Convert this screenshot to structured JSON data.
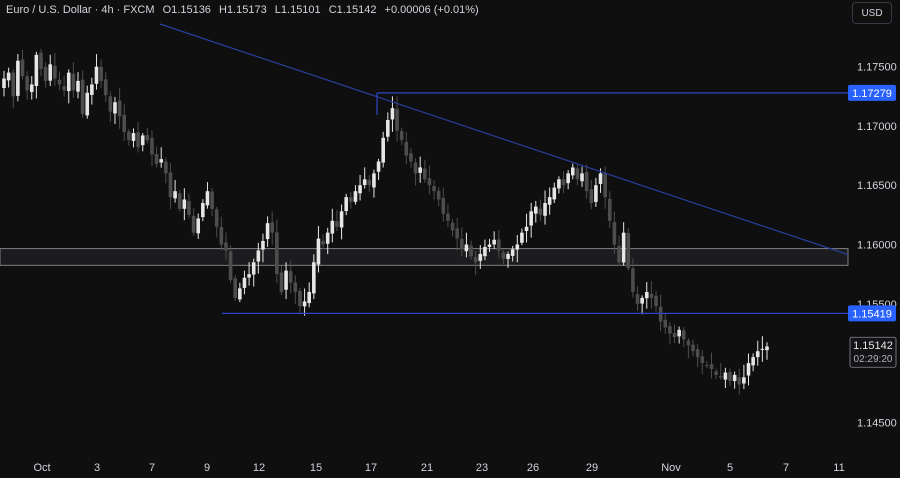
{
  "header": {
    "symbol": "Euro / U.S. Dollar · 4h · FXCM",
    "open": "O1.15136",
    "high": "H1.15173",
    "low": "L1.15101",
    "close": "C1.15142",
    "change": "+0.00006 (+0.01%)"
  },
  "currency_button": "USD",
  "colors": {
    "background": "#0f0f0f",
    "candle_up": "#e6e6e6",
    "candle_down": "#4d4d4d",
    "trendline": "#2a3f9e",
    "level_line": "#2c45c4",
    "label_bg": "#2962ff",
    "zone_fill": "#1c1c1f",
    "zone_border": "#9a9aa0",
    "axis_text": "#d1d4dc"
  },
  "chart_data": {
    "type": "candlestick",
    "ylim": [
      1.1425,
      1.1786
    ],
    "y_ticks": [
      "1.17500",
      "1.17000",
      "1.16500",
      "1.16000",
      "1.15500",
      "1.14500"
    ],
    "x_ticks": [
      "Oct",
      "3",
      "7",
      "9",
      "12",
      "15",
      "17",
      "21",
      "23",
      "26",
      "29",
      "Nov",
      "5",
      "7",
      "11"
    ],
    "grid": false,
    "levels": [
      {
        "label": "1.17279",
        "value": 1.17279
      },
      {
        "label": "1.15419",
        "value": 1.15419
      }
    ],
    "current_price": {
      "label": "1.15142",
      "value": 1.15142,
      "countdown": "02:29:20"
    },
    "zone": {
      "from": 1.15825,
      "to": 1.15965
    },
    "trendline": {
      "from": 1.1786,
      "to": 1.15915
    },
    "close_path": [
      1.174,
      1.1745,
      1.1725,
      1.1755,
      1.1742,
      1.173,
      1.1735,
      1.176,
      1.1748,
      1.1738,
      1.1752,
      1.174,
      1.1735,
      1.173,
      1.1745,
      1.173,
      1.1738,
      1.171,
      1.1728,
      1.1735,
      1.175,
      1.1738,
      1.1726,
      1.1712,
      1.172,
      1.1708,
      1.1695,
      1.1688,
      1.1694,
      1.1682,
      1.1692,
      1.1688,
      1.1676,
      1.1668,
      1.1672,
      1.166,
      1.164,
      1.1645,
      1.163,
      1.1638,
      1.1625,
      1.161,
      1.1622,
      1.1635,
      1.1645,
      1.163,
      1.1615,
      1.16,
      1.1595,
      1.157,
      1.1555,
      1.1563,
      1.1572,
      1.1575,
      1.1585,
      1.1595,
      1.1603,
      1.1618,
      1.161,
      1.1575,
      1.156,
      1.1578,
      1.1568,
      1.156,
      1.1548,
      1.1552,
      1.156,
      1.1585,
      1.1605,
      1.16,
      1.161,
      1.162,
      1.1615,
      1.1628,
      1.164,
      1.1636,
      1.1645,
      1.165,
      1.1655,
      1.165,
      1.166,
      1.167,
      1.169,
      1.1705,
      1.1715,
      1.1696,
      1.1688,
      1.1675,
      1.167,
      1.166,
      1.1665,
      1.1655,
      1.165,
      1.1645,
      1.1638,
      1.1626,
      1.162,
      1.1612,
      1.1605,
      1.1596,
      1.16,
      1.159,
      1.1585,
      1.1592,
      1.1598,
      1.16,
      1.1604,
      1.1595,
      1.1588,
      1.1592,
      1.1596,
      1.16,
      1.161,
      1.1615,
      1.1628,
      1.1632,
      1.1625,
      1.1635,
      1.164,
      1.1648,
      1.1655,
      1.165,
      1.166,
      1.1665,
      1.1655,
      1.166,
      1.1645,
      1.1635,
      1.165,
      1.166,
      1.164,
      1.162,
      1.16,
      1.1585,
      1.161,
      1.158,
      1.156,
      1.155,
      1.1555,
      1.156,
      1.1555,
      1.1548,
      1.1535,
      1.153,
      1.1525,
      1.1522,
      1.1528,
      1.152,
      1.1515,
      1.151,
      1.1505,
      1.15,
      1.1498,
      1.1495,
      1.149,
      1.1488,
      1.1492,
      1.1485,
      1.149,
      1.1482,
      1.1488,
      1.15,
      1.1505,
      1.151,
      1.1512,
      1.1514
    ]
  }
}
